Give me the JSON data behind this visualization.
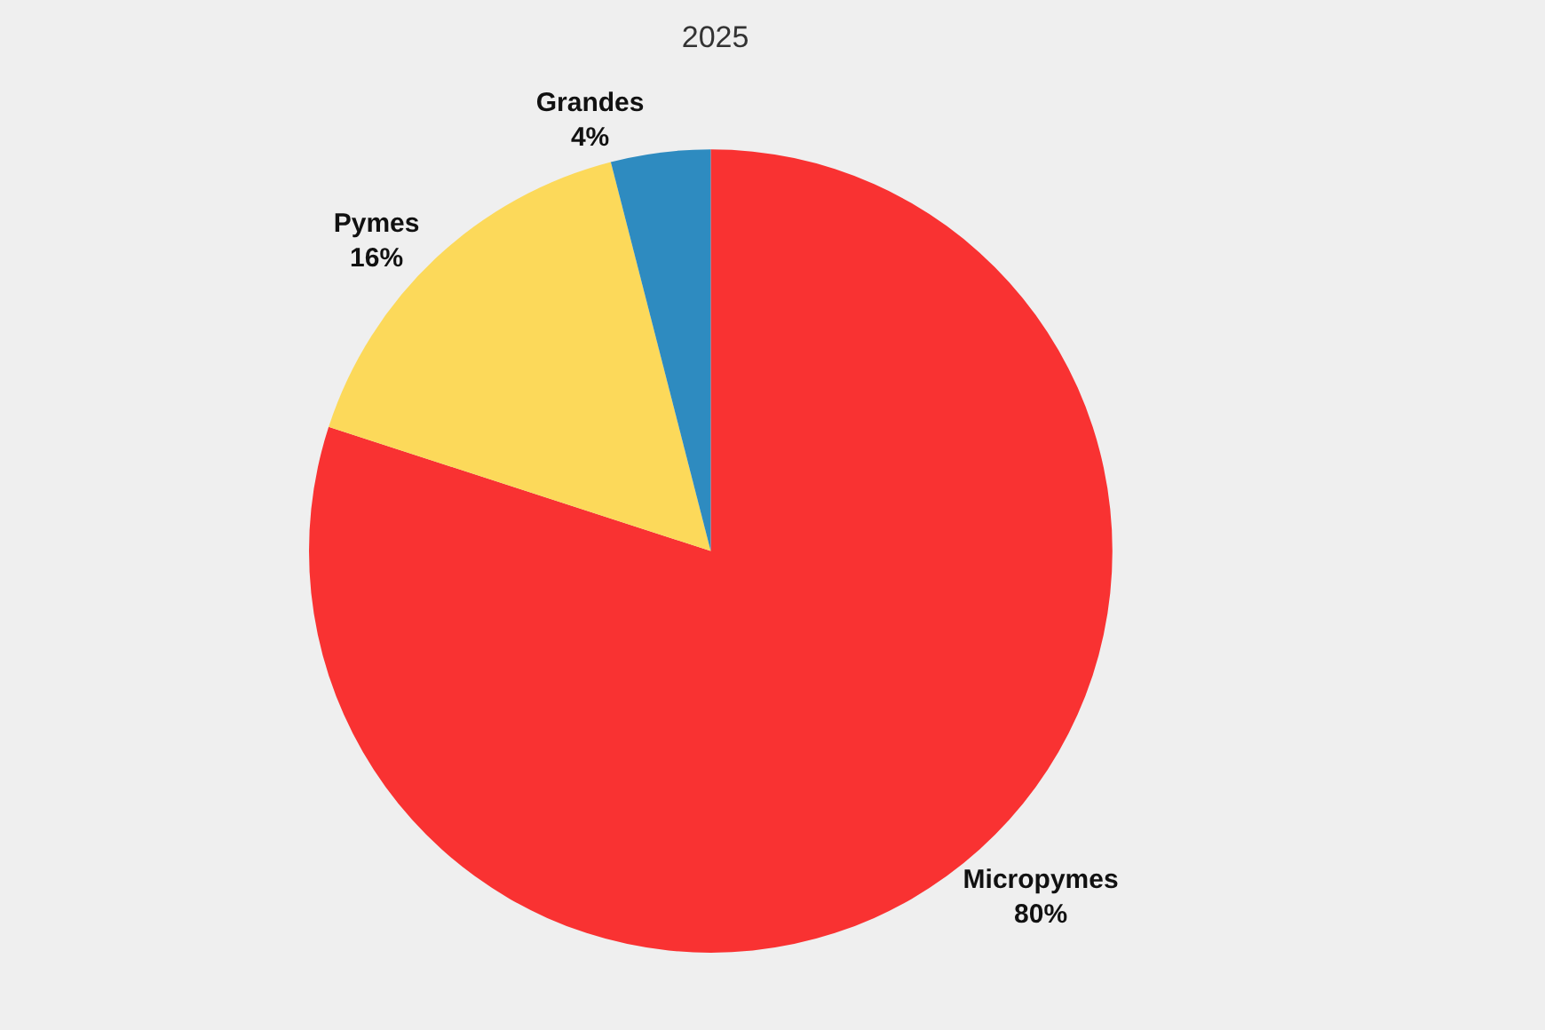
{
  "chart_data": {
    "type": "pie",
    "title": "2025",
    "categories": [
      "Micropymes",
      "Pymes",
      "Grandes"
    ],
    "values": [
      80,
      16,
      4
    ],
    "value_labels": [
      "80%",
      "16%",
      "4%"
    ],
    "colors": [
      "#f93232",
      "#fcd95a",
      "#2e8bc0"
    ],
    "legend": false
  }
}
